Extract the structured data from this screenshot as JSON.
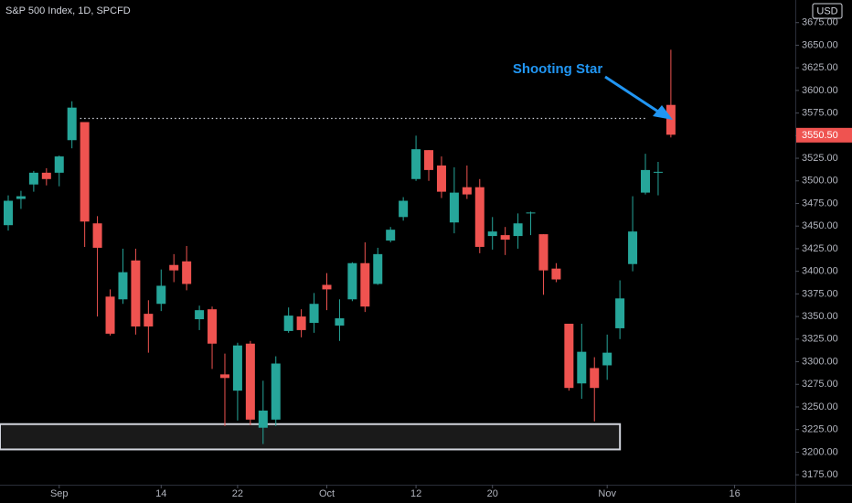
{
  "chart_data": {
    "type": "candlestick",
    "title": "S&P 500 Index, 1D, SPCFD",
    "currency": "USD",
    "annotation": "Shooting Star",
    "up_color": "#26a69a",
    "down_color": "#ef5350",
    "annotation_color": "#2196f3",
    "last_price": {
      "value": 3550.5,
      "label": "3550.50"
    },
    "resistance_level": 3569,
    "support_zone": [
      3203,
      3231
    ],
    "categories": [
      null,
      null,
      null,
      null,
      "Sep",
      null,
      null,
      null,
      null,
      null,
      null,
      null,
      "14",
      null,
      null,
      null,
      null,
      null,
      "22",
      null,
      null,
      null,
      null,
      null,
      null,
      "Oct",
      null,
      null,
      null,
      null,
      null,
      null,
      "12",
      null,
      null,
      null,
      null,
      null,
      "20",
      null,
      null,
      null,
      null,
      null,
      null,
      null,
      null,
      "Nov",
      null,
      null,
      null,
      null,
      null,
      null,
      null,
      null,
      null,
      "16",
      null,
      null,
      null,
      null
    ],
    "open": [
      3451,
      3480,
      3496,
      3509,
      3509,
      3545,
      3565,
      3453,
      3372,
      3369,
      3412,
      3353,
      3364,
      3407,
      3411,
      3347,
      3358,
      3286,
      3268,
      3320,
      3227,
      3236,
      3334,
      3350,
      3343,
      3385,
      3340,
      3369,
      3409,
      3386,
      3434,
      3460,
      3502,
      3534,
      3517,
      3454,
      3493,
      3493,
      3439,
      3440,
      3439,
      3464,
      3441,
      3403,
      3342,
      3276,
      3293,
      3296,
      3337,
      3408,
      3487,
      3509,
      3584,
      null,
      null,
      null,
      null,
      null,
      null,
      null,
      null,
      null
    ],
    "high": [
      3484,
      3489,
      3511,
      3514,
      3528,
      3588,
      3565,
      3461,
      3380,
      3425,
      3425,
      3368,
      3402,
      3419,
      3428,
      3362,
      3361,
      3309,
      3321,
      3323,
      3279,
      3306,
      3360,
      3358,
      3376,
      3398,
      3369,
      3410,
      3432,
      3426,
      3449,
      3482,
      3550,
      3534,
      3527,
      3515,
      3517,
      3502,
      3460,
      3449,
      3464,
      3466,
      3441,
      3409,
      3342,
      3342,
      3305,
      3330,
      3390,
      3483,
      3530,
      3521,
      3645,
      null,
      null,
      null,
      null,
      null,
      null,
      null,
      null,
      null
    ],
    "low": [
      3445,
      3469,
      3488,
      3495,
      3494,
      3536,
      3427,
      3350,
      3329,
      3364,
      3330,
      3310,
      3356,
      3388,
      3379,
      3335,
      3292,
      3229,
      3235,
      3230,
      3209,
      3229,
      3332,
      3327,
      3332,
      3357,
      3323,
      3367,
      3355,
      3385,
      3432,
      3456,
      3500,
      3500,
      3481,
      3442,
      3480,
      3420,
      3424,
      3418,
      3425,
      3440,
      3374,
      3388,
      3268,
      3259,
      3234,
      3280,
      3325,
      3400,
      3485,
      3484,
      3548,
      null,
      null,
      null,
      null,
      null,
      null,
      null,
      null,
      null
    ],
    "close": [
      3478,
      3483,
      3509,
      3502,
      3527,
      3581,
      3455,
      3426,
      3331,
      3399,
      3339,
      3339,
      3384,
      3401,
      3386,
      3357,
      3320,
      3282,
      3318,
      3236,
      3246,
      3298,
      3351,
      3335,
      3364,
      3380,
      3348,
      3409,
      3361,
      3419,
      3446,
      3478,
      3535,
      3512,
      3488,
      3487,
      3485,
      3427,
      3444,
      3435,
      3453,
      3465,
      3401,
      3391,
      3271,
      3311,
      3271,
      3310,
      3370,
      3444,
      3512,
      3510,
      3551,
      null,
      null,
      null,
      null,
      null,
      null,
      null,
      null,
      null
    ],
    "ylim": [
      3164,
      3700
    ],
    "yticks": [
      {
        "value": 3175,
        "label": "3175.00"
      },
      {
        "value": 3200,
        "label": "3200.00"
      },
      {
        "value": 3225,
        "label": "3225.00"
      },
      {
        "value": 3250,
        "label": "3250.00"
      },
      {
        "value": 3275,
        "label": "3275.00"
      },
      {
        "value": 3300,
        "label": "3300.00"
      },
      {
        "value": 3325,
        "label": "3325.00"
      },
      {
        "value": 3350,
        "label": "3350.00"
      },
      {
        "value": 3375,
        "label": "3375.00"
      },
      {
        "value": 3400,
        "label": "3400.00"
      },
      {
        "value": 3425,
        "label": "3425.00"
      },
      {
        "value": 3450,
        "label": "3450.00"
      },
      {
        "value": 3475,
        "label": "3475.00"
      },
      {
        "value": 3500,
        "label": "3500.00"
      },
      {
        "value": 3525,
        "label": "3525.00"
      },
      {
        "value": 3550,
        "label": "3550.00"
      },
      {
        "value": 3575,
        "label": "3575.00"
      },
      {
        "value": 3600,
        "label": "3600.00"
      },
      {
        "value": 3625,
        "label": "3625.00"
      },
      {
        "value": 3650,
        "label": "3650.00"
      },
      {
        "value": 3675,
        "label": "3675.00"
      }
    ]
  }
}
